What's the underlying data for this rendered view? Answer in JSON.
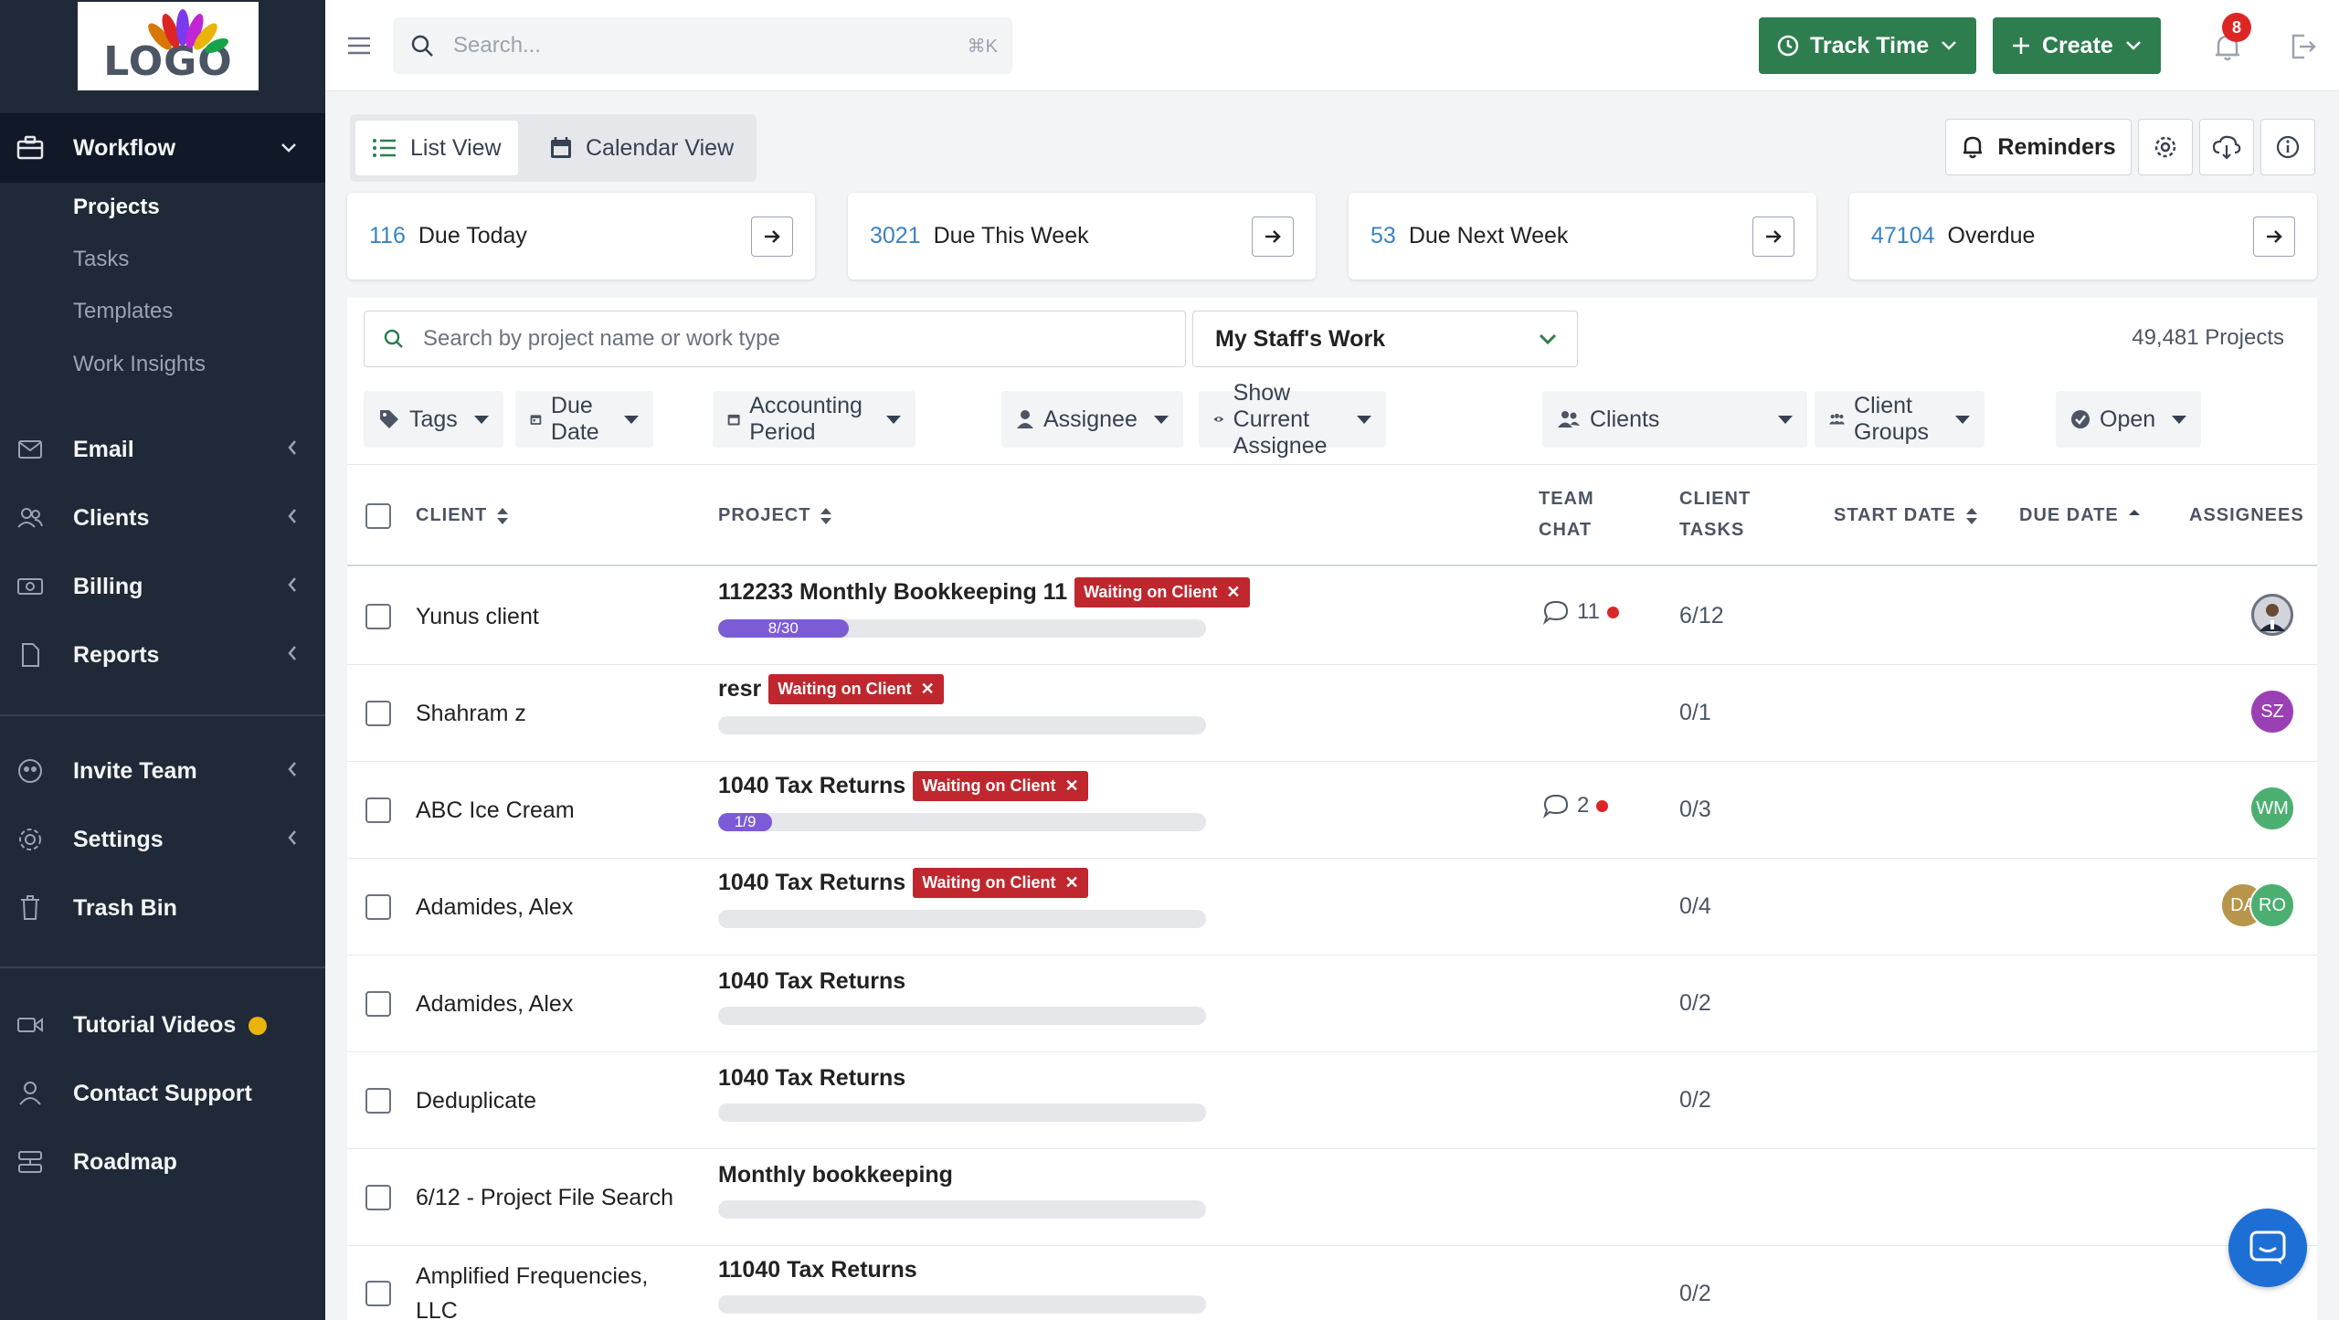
{
  "logo": {
    "text": "LOGO"
  },
  "sidebar": {
    "workflow": "Workflow",
    "sub_items": [
      "Projects",
      "Tasks",
      "Templates",
      "Work Insights"
    ],
    "email": "Email",
    "clients": "Clients",
    "billing": "Billing",
    "reports": "Reports",
    "invite_team": "Invite Team",
    "settings": "Settings",
    "trash_bin": "Trash Bin",
    "tutorial_videos": "Tutorial Videos",
    "contact_support": "Contact Support",
    "roadmap": "Roadmap"
  },
  "topbar": {
    "search_placeholder": "Search...",
    "search_shortcut": "⌘K",
    "track_time": "Track Time",
    "create": "Create",
    "notification_count": "8"
  },
  "views": {
    "list": "List View",
    "calendar": "Calendar View"
  },
  "reminders": "Reminders",
  "cards": [
    {
      "num": "116",
      "label": "Due Today"
    },
    {
      "num": "3021",
      "label": "Due This Week"
    },
    {
      "num": "53",
      "label": "Due Next Week"
    },
    {
      "num": "47104",
      "label": "Overdue"
    }
  ],
  "panel": {
    "search_placeholder": "Search by project name or work type",
    "staff_filter": "My Staff's Work",
    "project_count": "49,481 Projects"
  },
  "filters": [
    "Tags",
    "Due Date",
    "Accounting Period",
    "Assignee",
    "Show Current Assignee",
    "Clients",
    "Client Groups",
    "Open"
  ],
  "columns": {
    "client": "CLIENT",
    "project": "PROJECT",
    "team_chat_1": "TEAM",
    "team_chat_2": "CHAT",
    "client_tasks_1": "CLIENT",
    "client_tasks_2": "TASKS",
    "start_date": "START DATE",
    "due_date": "DUE DATE",
    "assignees": "ASSIGNEES"
  },
  "rows": [
    {
      "client": "Yunus client",
      "project": "112233 Monthly Bookkeeping 11",
      "tag": "Waiting on Client",
      "progress_label": "8/30",
      "progress": 0.267,
      "chat": "11",
      "tasks": "6/12"
    },
    {
      "client": "Shahram z",
      "project": "resr",
      "tag": "Waiting on Client",
      "progress_label": "",
      "progress": 0,
      "chat": "",
      "tasks": "0/1",
      "avatar": "SZ"
    },
    {
      "client": "ABC Ice Cream",
      "project": "1040 Tax Returns",
      "tag": "Waiting on Client",
      "progress_label": "1/9",
      "progress": 0.111,
      "chat": "2",
      "tasks": "0/3",
      "avatar": "WM"
    },
    {
      "client": "Adamides, Alex",
      "project": "1040 Tax Returns",
      "tag": "Waiting on Client",
      "progress_label": "",
      "progress": 0,
      "chat": "",
      "tasks": "0/4",
      "avatar": "DA",
      "avatar2": "RO"
    },
    {
      "client": "Adamides, Alex",
      "project": "1040 Tax Returns",
      "tag": "",
      "progress_label": "",
      "progress": 0,
      "chat": "",
      "tasks": "0/2"
    },
    {
      "client": "Deduplicate",
      "project": "1040 Tax Returns",
      "tag": "",
      "progress_label": "",
      "progress": 0,
      "chat": "",
      "tasks": "0/2"
    },
    {
      "client": "6/12 - Project File Search",
      "project": "Monthly bookkeeping",
      "tag": "",
      "progress_label": "",
      "progress": 0,
      "chat": "",
      "tasks": ""
    },
    {
      "client": "Amplified Frequencies, LLC",
      "project": "11040 Tax Returns",
      "tag": "",
      "progress_label": "",
      "progress": 0,
      "chat": "",
      "tasks": "0/2"
    }
  ],
  "colors": {
    "sidebar": "#1f2937",
    "brand_green": "#2e7d4f",
    "tag_red": "#c0262d",
    "progress_purple": "#7c5cd6",
    "link_blue": "#3b82c4"
  }
}
